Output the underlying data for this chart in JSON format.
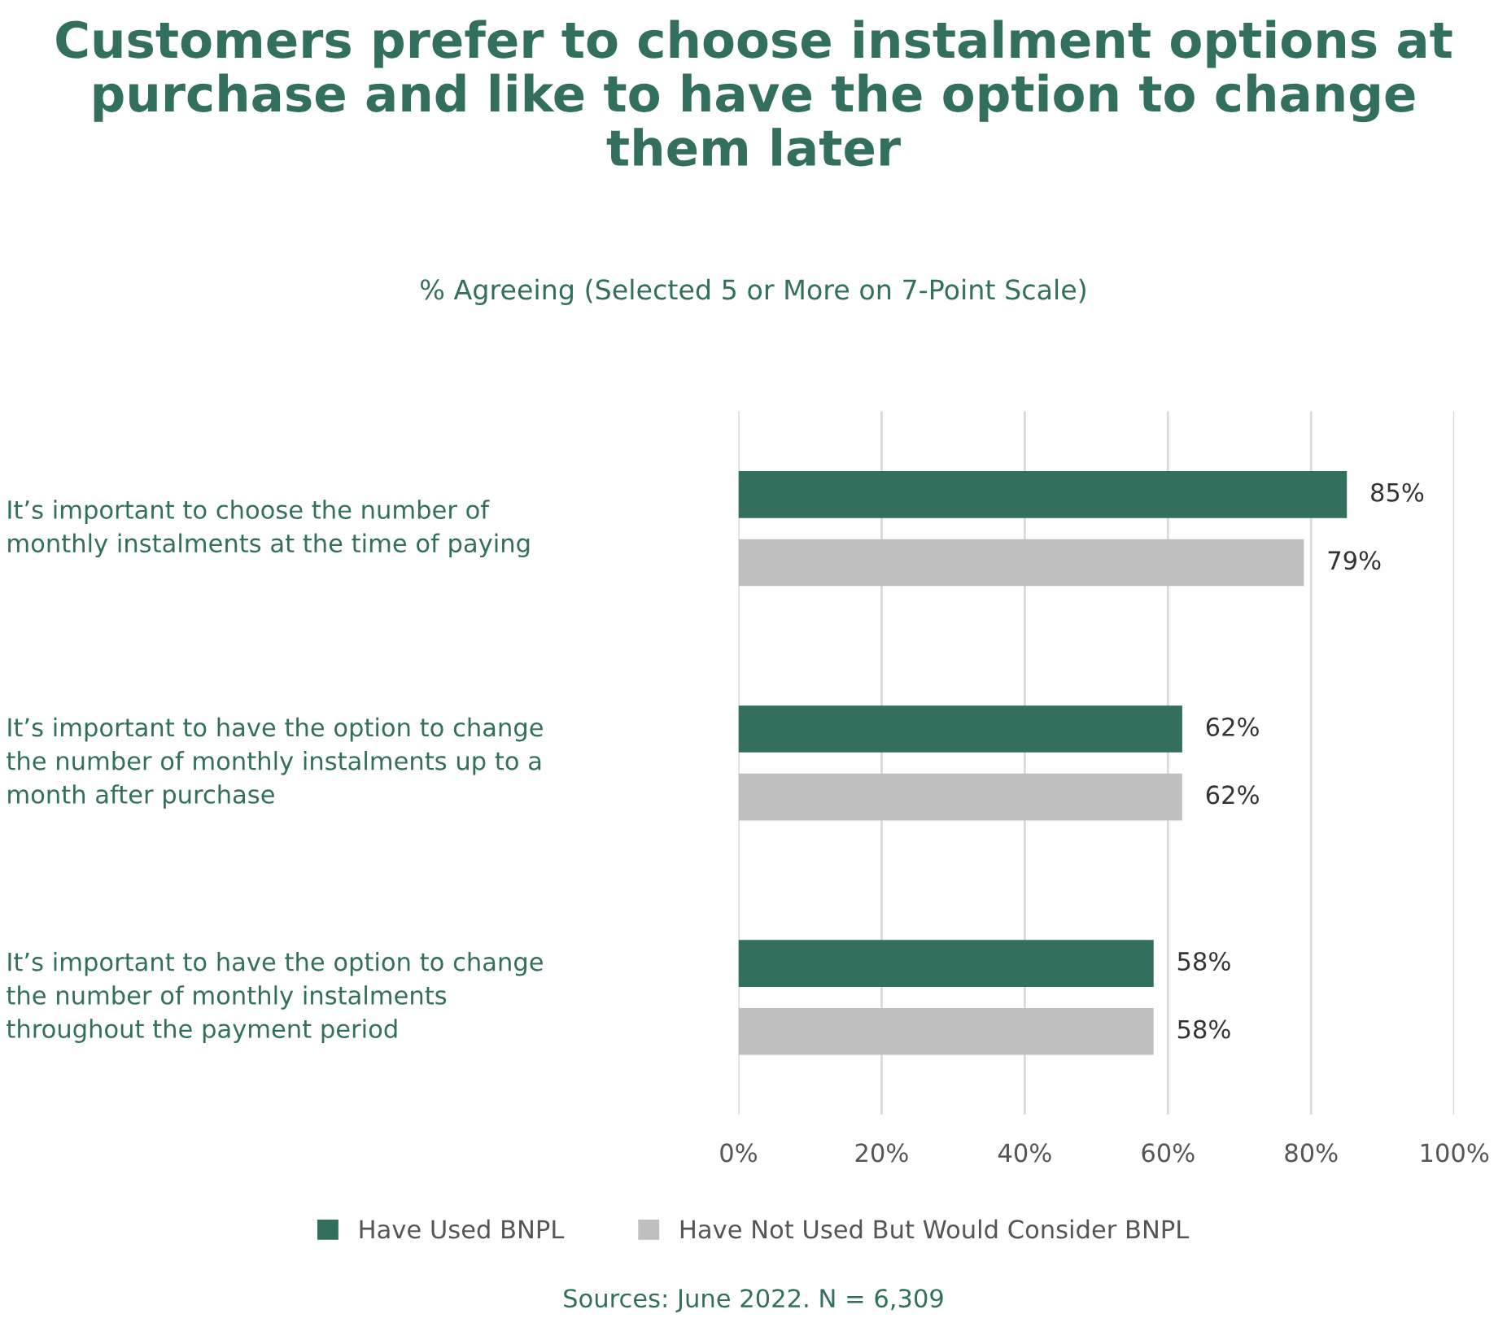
{
  "chart_data": {
    "type": "bar",
    "orientation": "horizontal",
    "title": "Customers prefer to choose instalment options at purchase and like to have the option to change them later",
    "subtitle": "% Agreeing (Selected 5 or More on 7-Point Scale)",
    "categories": [
      "It’s important to choose the number of monthly instalments at the time of paying",
      "It’s important to have the option to change the number of monthly instalments up to a month after purchase",
      "It’s important to have the option to change the number of monthly instalments throughout the payment period"
    ],
    "series": [
      {
        "name": "Have Used BNPL",
        "color": "#336f5e",
        "values": [
          85,
          62,
          58
        ],
        "value_labels": [
          "85%",
          "62%",
          "58%"
        ]
      },
      {
        "name": "Have Not Used But Would Consider BNPL",
        "color": "#bfbfbf",
        "values": [
          79,
          62,
          58
        ],
        "value_labels": [
          "79%",
          "62%",
          "58%"
        ]
      }
    ],
    "xlim": [
      0,
      100
    ],
    "xticks": [
      {
        "value": 0,
        "label": "0%"
      },
      {
        "value": 20,
        "label": "20%"
      },
      {
        "value": 40,
        "label": "40%"
      },
      {
        "value": 60,
        "label": "60%"
      },
      {
        "value": 80,
        "label": "80%"
      },
      {
        "value": 100,
        "label": "100%"
      }
    ],
    "grid": "x",
    "legend": "bottom",
    "annotations": [
      "Sources: June 2022. N = 6,309"
    ]
  }
}
